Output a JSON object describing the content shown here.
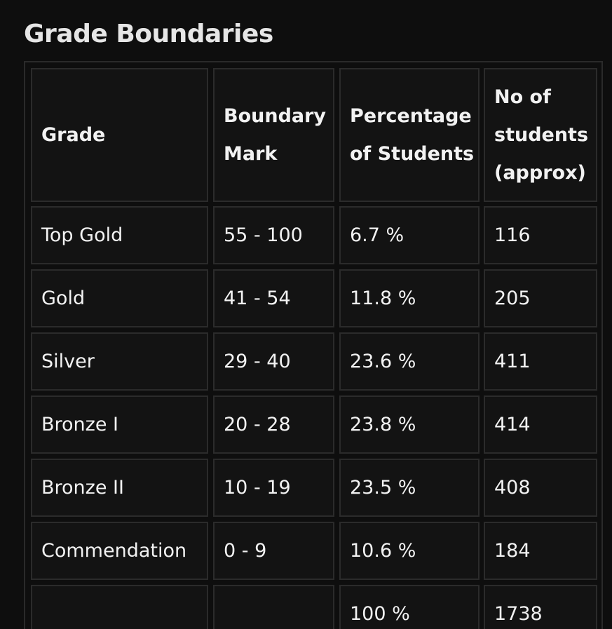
{
  "title": "Grade Boundaries",
  "headers": {
    "grade": "Grade",
    "boundary_mark": "Boundary Mark",
    "percentage": "Percentage of Students",
    "students": "No of students (approx)"
  },
  "rows": [
    {
      "grade": "Top Gold",
      "mark": "55 - 100",
      "percent": "6.7 %",
      "students": "116"
    },
    {
      "grade": "Gold",
      "mark": "41 - 54",
      "percent": "11.8 %",
      "students": "205"
    },
    {
      "grade": "Silver",
      "mark": "29 - 40",
      "percent": "23.6 %",
      "students": "411"
    },
    {
      "grade": "Bronze I",
      "mark": "20 - 28",
      "percent": "23.8 %",
      "students": "414"
    },
    {
      "grade": "Bronze II",
      "mark": "10 - 19",
      "percent": "23.5 %",
      "students": "408"
    },
    {
      "grade": "Commendation",
      "mark": "0 - 9",
      "percent": "10.6 %",
      "students": "184"
    },
    {
      "grade": "",
      "mark": "",
      "percent": "100 %",
      "students": "1738"
    }
  ]
}
